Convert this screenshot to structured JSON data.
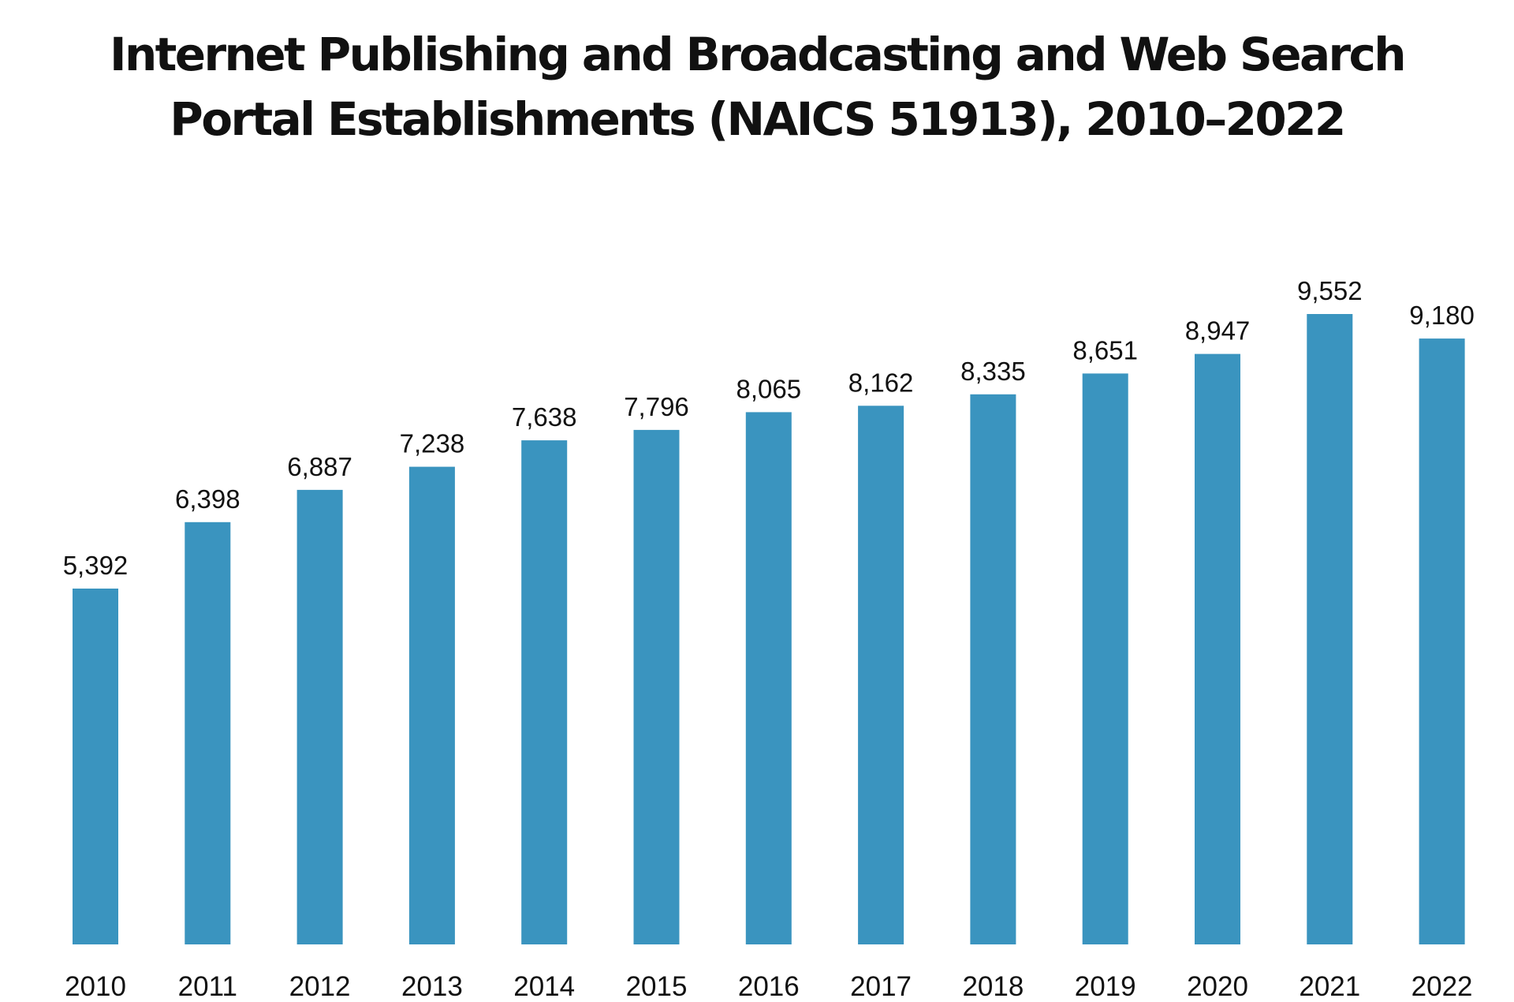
{
  "chart_data": {
    "type": "bar",
    "title_lines": [
      "Internet Publishing and Broadcasting and Web Search",
      "Portal Establishments (NAICS 51913), 2010–2022"
    ],
    "categories": [
      "2010",
      "2011",
      "2012",
      "2013",
      "2014",
      "2015",
      "2016",
      "2017",
      "2018",
      "2019",
      "2020",
      "2021",
      "2022"
    ],
    "values": [
      5392,
      6398,
      6887,
      7238,
      7638,
      7796,
      8065,
      8162,
      8335,
      8651,
      8947,
      9552,
      9180
    ],
    "value_labels": [
      "5,392",
      "6,398",
      "6,887",
      "7,238",
      "7,638",
      "7,796",
      "8,065",
      "8,162",
      "8,335",
      "8,651",
      "8,947",
      "9,552",
      "9,180"
    ],
    "xlabel": "",
    "ylabel": "",
    "ylim": [
      0,
      9552
    ],
    "grid": false,
    "legend": "none",
    "colors": {
      "bar": "#3a94bf",
      "text": "#111111",
      "background": "#ffffff"
    }
  }
}
